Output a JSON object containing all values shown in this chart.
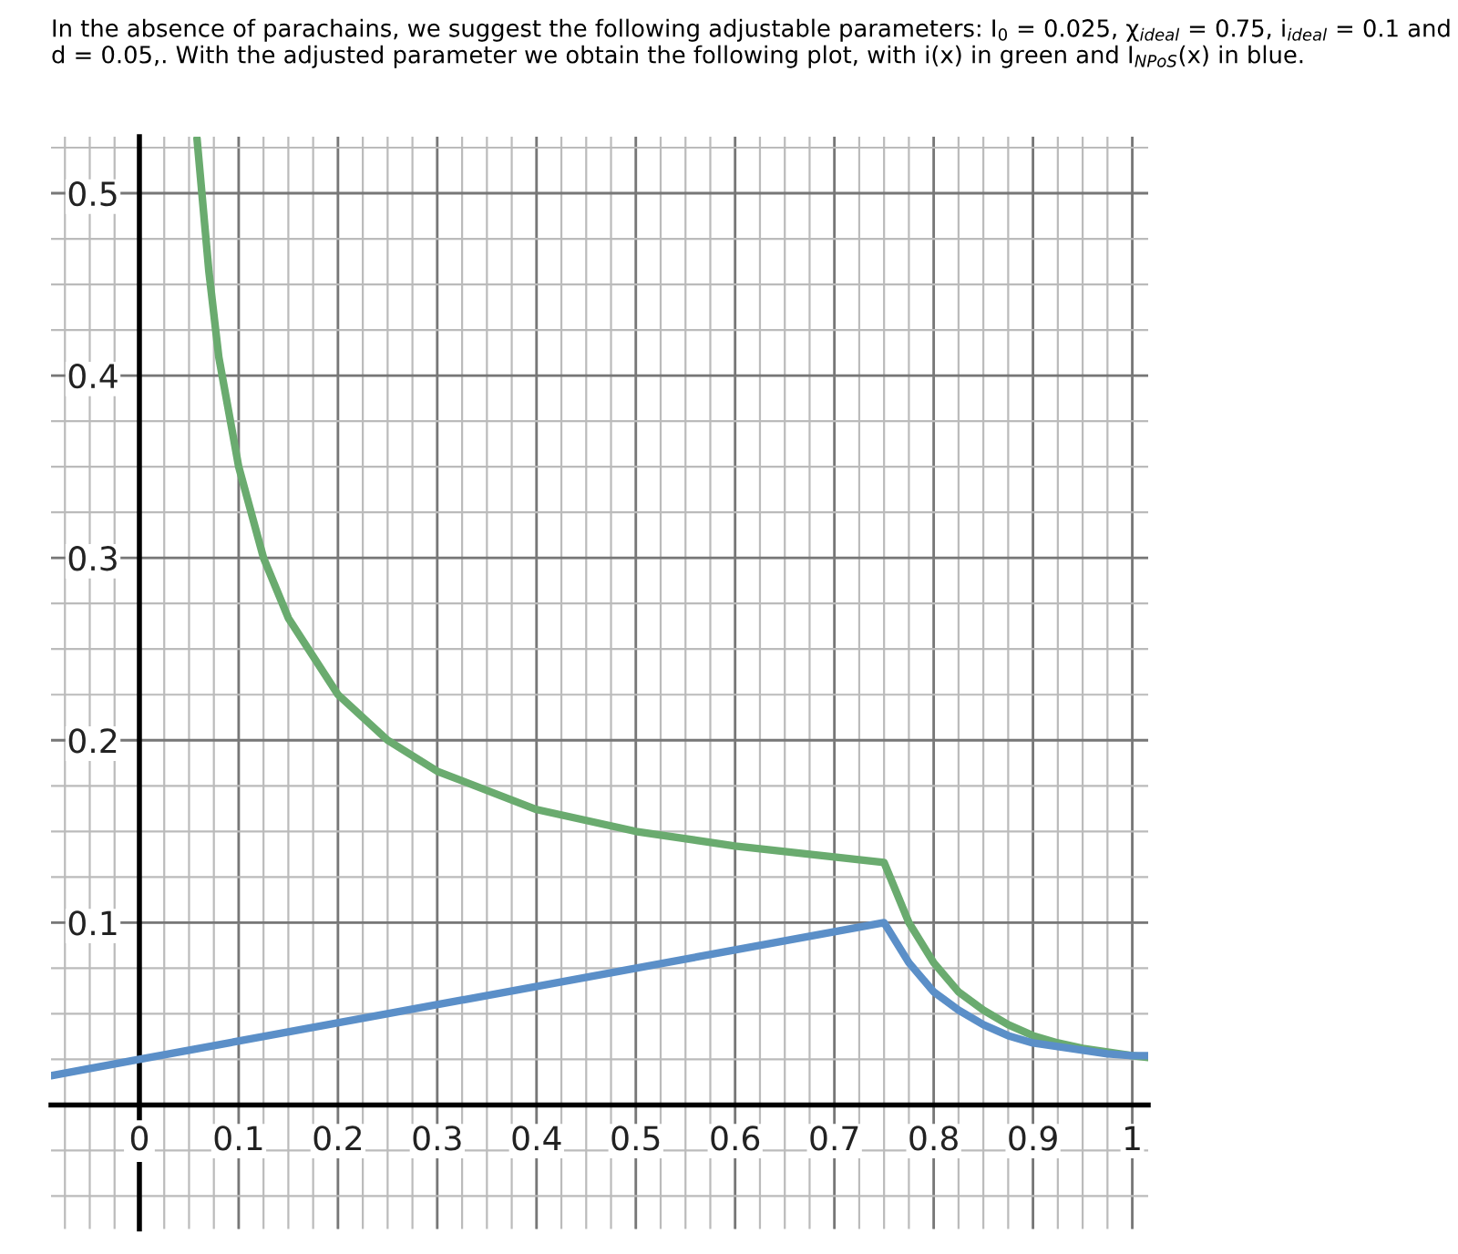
{
  "chart_data": {
    "type": "line",
    "title": "In the absence of parachains, we suggest the following adjustable parameters: I$_{0}$ = 0.025, χ$_{ideal}$ = 0.75, i$_{ideal}$ = 0.1 and d = 0.05,. With the adjusted parameter we obtain the following plot, with i(x) in green and I$_{NPoS}$(x) in blue.",
    "series": [
      {
        "color": "#6aab6f",
        "x": [
          0.058,
          0.07,
          0.08,
          0.1,
          0.125,
          0.15,
          0.2,
          0.25,
          0.3,
          0.4,
          0.5,
          0.6,
          0.75,
          0.775,
          0.8,
          0.825,
          0.85,
          0.875,
          0.9,
          0.925,
          0.95,
          0.975,
          1.0,
          1.016
        ],
        "values": [
          0.53,
          0.457,
          0.41,
          0.35,
          0.3,
          0.267,
          0.225,
          0.2,
          0.183,
          0.162,
          0.15,
          0.142,
          0.133,
          0.1,
          0.078,
          0.062,
          0.052,
          0.044,
          0.038,
          0.034,
          0.031,
          0.029,
          0.027,
          0.026
        ]
      },
      {
        "color": "#5b8fc8",
        "x": [
          -0.089,
          0.0,
          0.75,
          0.775,
          0.8,
          0.825,
          0.85,
          0.875,
          0.9,
          0.925,
          0.95,
          0.975,
          1.0,
          1.016
        ],
        "values": [
          0.016,
          0.025,
          0.1,
          0.078,
          0.062,
          0.052,
          0.044,
          0.038,
          0.034,
          0.032,
          0.03,
          0.028,
          0.027,
          0.027
        ]
      }
    ],
    "xlim": [
      -0.089,
      1.016
    ],
    "ylim": [
      -0.068,
      0.531
    ],
    "xticks": [
      0,
      0.1,
      0.2,
      0.3,
      0.4,
      0.5,
      0.6,
      0.7,
      0.8,
      0.9,
      1
    ],
    "yticks": [
      0.1,
      0.2,
      0.3,
      0.4,
      0.5
    ],
    "grid": true
  }
}
